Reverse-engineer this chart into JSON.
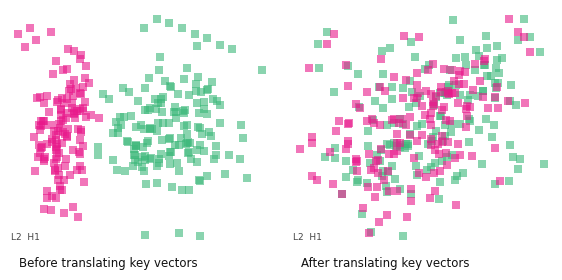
{
  "title_left": "Before translating key vectors",
  "title_right": "After translating key vectors",
  "label": "L2  H1",
  "pink_color": "#E8198B",
  "green_color": "#3DB87A",
  "background_color": "#FFFFFF",
  "marker_size": 28,
  "seed": 7
}
